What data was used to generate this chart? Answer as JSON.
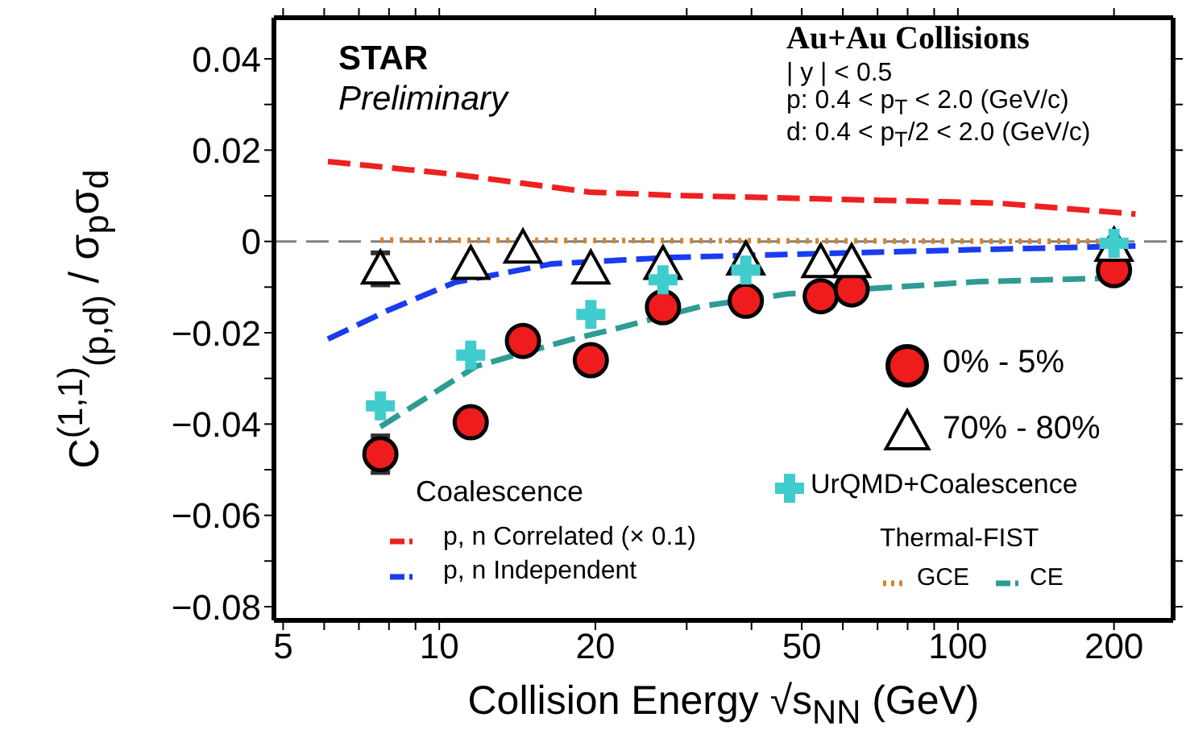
{
  "chart_data": {
    "type": "scatter",
    "xlabel": "Collision Energy √s$_{NN}$ (GeV)",
    "ylabel": "C$^{(1,1)}$$_{(p,d)}$ / σ$_{p}$σ$_{d}$",
    "annotations": [
      "STAR",
      "Preliminary",
      "Au+Au Collisions",
      "| y | < 0.5",
      "p: 0.4 < p$_{T}$ < 2.0 (GeV/c)",
      "d: 0.4 < p$_{T}$/2 < 2.0 (GeV/c)",
      "Coalescence",
      "Thermal-FIST"
    ],
    "log": "x",
    "legend": "right",
    "grid": false,
    "xlim": [
      4.8,
      260
    ],
    "xticks": [
      5,
      {
        "value": 6,
        "label": null
      },
      {
        "value": 7,
        "label": null
      },
      {
        "value": 8,
        "label": null
      },
      {
        "value": 9,
        "label": null
      },
      10,
      20,
      {
        "value": 30,
        "label": null
      },
      {
        "value": 40,
        "label": null
      },
      50,
      {
        "value": 60,
        "label": null
      },
      {
        "value": 70,
        "label": null
      },
      {
        "value": 80,
        "label": null
      },
      {
        "value": 90,
        "label": null
      },
      100,
      200
    ],
    "ylim": [
      -0.083,
      0.049
    ],
    "yticks": [
      {
        "value": -0.08,
        "label": "−0.08"
      },
      {
        "value": -0.07,
        "label": null
      },
      {
        "value": -0.06,
        "label": "−0.06"
      },
      {
        "value": -0.05,
        "label": null
      },
      {
        "value": -0.04,
        "label": "−0.04"
      },
      {
        "value": -0.03,
        "label": null
      },
      {
        "value": -0.02,
        "label": "−0.02"
      },
      {
        "value": -0.01,
        "label": null
      },
      0,
      {
        "value": 0.01,
        "label": null
      },
      0.02,
      {
        "value": 0.03,
        "label": null
      },
      0.04
    ],
    "ref_lines": [
      {
        "axis": "y",
        "value": 0,
        "color": "#808080",
        "line_style": "dashed"
      }
    ],
    "series": [
      {
        "name": "0% - 5%",
        "marker": "circle",
        "color": "#ee1c1c",
        "x": [
          7.7,
          11.5,
          14.5,
          19.6,
          27,
          39,
          54.4,
          62.4,
          200
        ],
        "values": [
          -0.0466,
          -0.0396,
          -0.0218,
          -0.026,
          -0.0144,
          -0.013,
          -0.012,
          -0.0105,
          -0.0063
        ],
        "errors": [
          0.004,
          null,
          null,
          null,
          null,
          null,
          null,
          null,
          null
        ]
      },
      {
        "name": "70% - 80%",
        "marker": "triangle",
        "color": "#ffffff",
        "x": [
          7.7,
          11.5,
          14.5,
          19.6,
          27,
          39,
          54.4,
          62.4,
          200
        ],
        "values": [
          -0.006,
          -0.005,
          -0.0014,
          -0.006,
          -0.005,
          -0.004,
          -0.0046,
          -0.0046,
          -0.001
        ],
        "errors": [
          0.0035,
          null,
          null,
          null,
          null,
          null,
          null,
          null,
          null
        ]
      },
      {
        "name": "UrQMD+Coalescence",
        "marker": "cross",
        "color": "#40cccc",
        "x": [
          7.7,
          11.5,
          19.6,
          27,
          39,
          200
        ],
        "values": [
          -0.036,
          -0.0249,
          -0.016,
          -0.0084,
          -0.0063,
          -0.0004
        ]
      },
      {
        "name": "p, n Correlated (× 0.1)",
        "type": "line",
        "line_style": "dashed",
        "color": "#ee2020",
        "x": [
          6.1,
          10.7,
          19.5,
          28.1,
          119,
          220
        ],
        "values": [
          0.0175,
          0.0147,
          0.0108,
          0.0101,
          0.0084,
          0.006
        ]
      },
      {
        "name": "p, n Independent",
        "type": "line",
        "line_style": "dashed",
        "color": "#1a3cf0",
        "x": [
          6.1,
          8,
          10.7,
          16.5,
          28.1,
          108,
          220
        ],
        "values": [
          -0.0214,
          -0.015,
          -0.009,
          -0.0049,
          -0.0035,
          -0.0018,
          -0.001
        ]
      },
      {
        "name": "GCE",
        "type": "line",
        "line_style": "dotted",
        "color": "#d9822b",
        "x": [
          7.7,
          200
        ],
        "values": [
          0.0003,
          0
        ]
      },
      {
        "name": "CE",
        "type": "line",
        "line_style": "dashed",
        "color": "#2e9c94",
        "x": [
          7.7,
          11.8,
          18.2,
          22.1,
          32,
          47,
          110,
          215
        ],
        "values": [
          -0.0406,
          -0.0273,
          -0.0213,
          -0.019,
          -0.0142,
          -0.0115,
          -0.0088,
          -0.0079
        ]
      }
    ]
  }
}
